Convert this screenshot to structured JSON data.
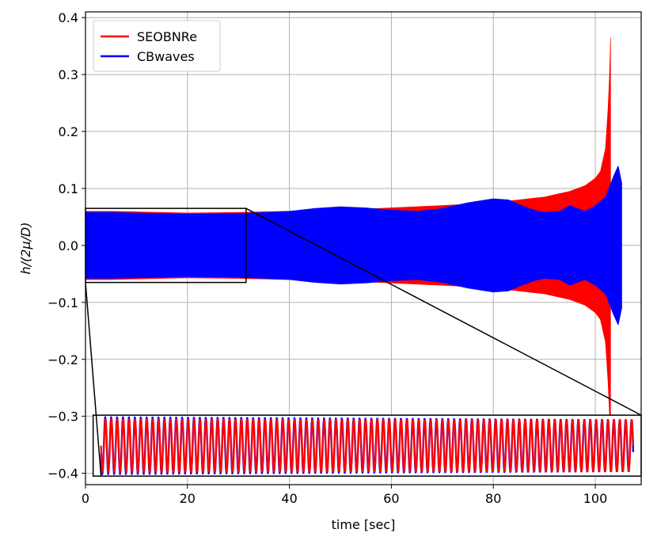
{
  "chart_data": {
    "type": "line",
    "xlabel": "time [sec]",
    "ylabel": "h/(2μ/D)",
    "xlim": [
      0,
      109
    ],
    "ylim": [
      -0.42,
      0.41
    ],
    "xticks": [
      0,
      20,
      40,
      60,
      80,
      100
    ],
    "yticks": [
      -0.4,
      -0.3,
      -0.2,
      -0.1,
      0.0,
      0.1,
      0.2,
      0.3,
      0.4
    ],
    "xtick_labels": [
      "0",
      "20",
      "40",
      "60",
      "80",
      "100"
    ],
    "ytick_labels": [
      "−0.4",
      "−0.3",
      "−0.2",
      "−0.1",
      "0.0",
      "0.1",
      "0.2",
      "0.3",
      "0.4"
    ],
    "grid": true,
    "legend_position": "top-left",
    "series": [
      {
        "name": "SEOBNRe",
        "color": "#ff0000",
        "envelope": {
          "t": [
            0,
            5,
            10,
            20,
            30,
            40,
            50,
            60,
            70,
            80,
            90,
            95,
            98,
            100,
            101,
            102,
            102.5,
            102.8,
            103.0
          ],
          "amp": [
            0.06,
            0.06,
            0.059,
            0.057,
            0.058,
            0.06,
            0.062,
            0.066,
            0.07,
            0.075,
            0.085,
            0.095,
            0.105,
            0.118,
            0.13,
            0.17,
            0.24,
            0.3,
            0.365
          ]
        },
        "end_time": 103.0
      },
      {
        "name": "CBwaves",
        "color": "#0000ff",
        "envelope": {
          "t": [
            0,
            5,
            10,
            20,
            30,
            40,
            45,
            50,
            55,
            60,
            65,
            70,
            75,
            80,
            83,
            85,
            88,
            90,
            93,
            95,
            98,
            100,
            102,
            103.5,
            104.5,
            105.2
          ],
          "amp": [
            0.058,
            0.058,
            0.057,
            0.055,
            0.056,
            0.06,
            0.065,
            0.068,
            0.066,
            0.062,
            0.06,
            0.065,
            0.075,
            0.082,
            0.08,
            0.072,
            0.062,
            0.058,
            0.06,
            0.07,
            0.06,
            0.07,
            0.085,
            0.12,
            0.14,
            0.11
          ]
        },
        "end_time": 105.2
      }
    ],
    "zoom_region": {
      "source_xlim": [
        0,
        31.5
      ],
      "source_ylim": [
        -0.065,
        0.065
      ],
      "inset_xlim": [
        1.5,
        109
      ],
      "inset_ylim": [
        -0.405,
        -0.298
      ],
      "inset_cycles": 90
    }
  }
}
